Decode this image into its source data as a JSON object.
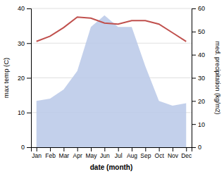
{
  "chart_data": {
    "type": "line",
    "x_label": "date (month)",
    "y_label": "max temp (C)",
    "y2_label": "med. precipitation (kg/m2)",
    "categories": [
      "Jan",
      "Feb",
      "Mar",
      "Apr",
      "May",
      "Jun",
      "Jul",
      "Aug",
      "Sep",
      "Oct",
      "Nov",
      "Dec"
    ],
    "series": [
      {
        "type": "area",
        "axis": "y2",
        "color": "#b8c8e8",
        "values": [
          20,
          21,
          25,
          33,
          52,
          57,
          52,
          52,
          35,
          20,
          18,
          19
        ]
      },
      {
        "type": "line",
        "color": "#c0504d",
        "values": [
          30.5,
          32.0,
          34.5,
          37.5,
          37.2,
          35.8,
          35.5,
          36.5,
          36.5,
          35.5,
          33.0,
          30.5
        ]
      }
    ],
    "ylim": [
      0,
      40
    ],
    "yticks": [
      0,
      10,
      20,
      30,
      40
    ],
    "y2lim": [
      0,
      60
    ],
    "y2ticks": [
      0,
      10,
      20,
      30,
      40,
      50,
      60
    ],
    "grid": true
  }
}
